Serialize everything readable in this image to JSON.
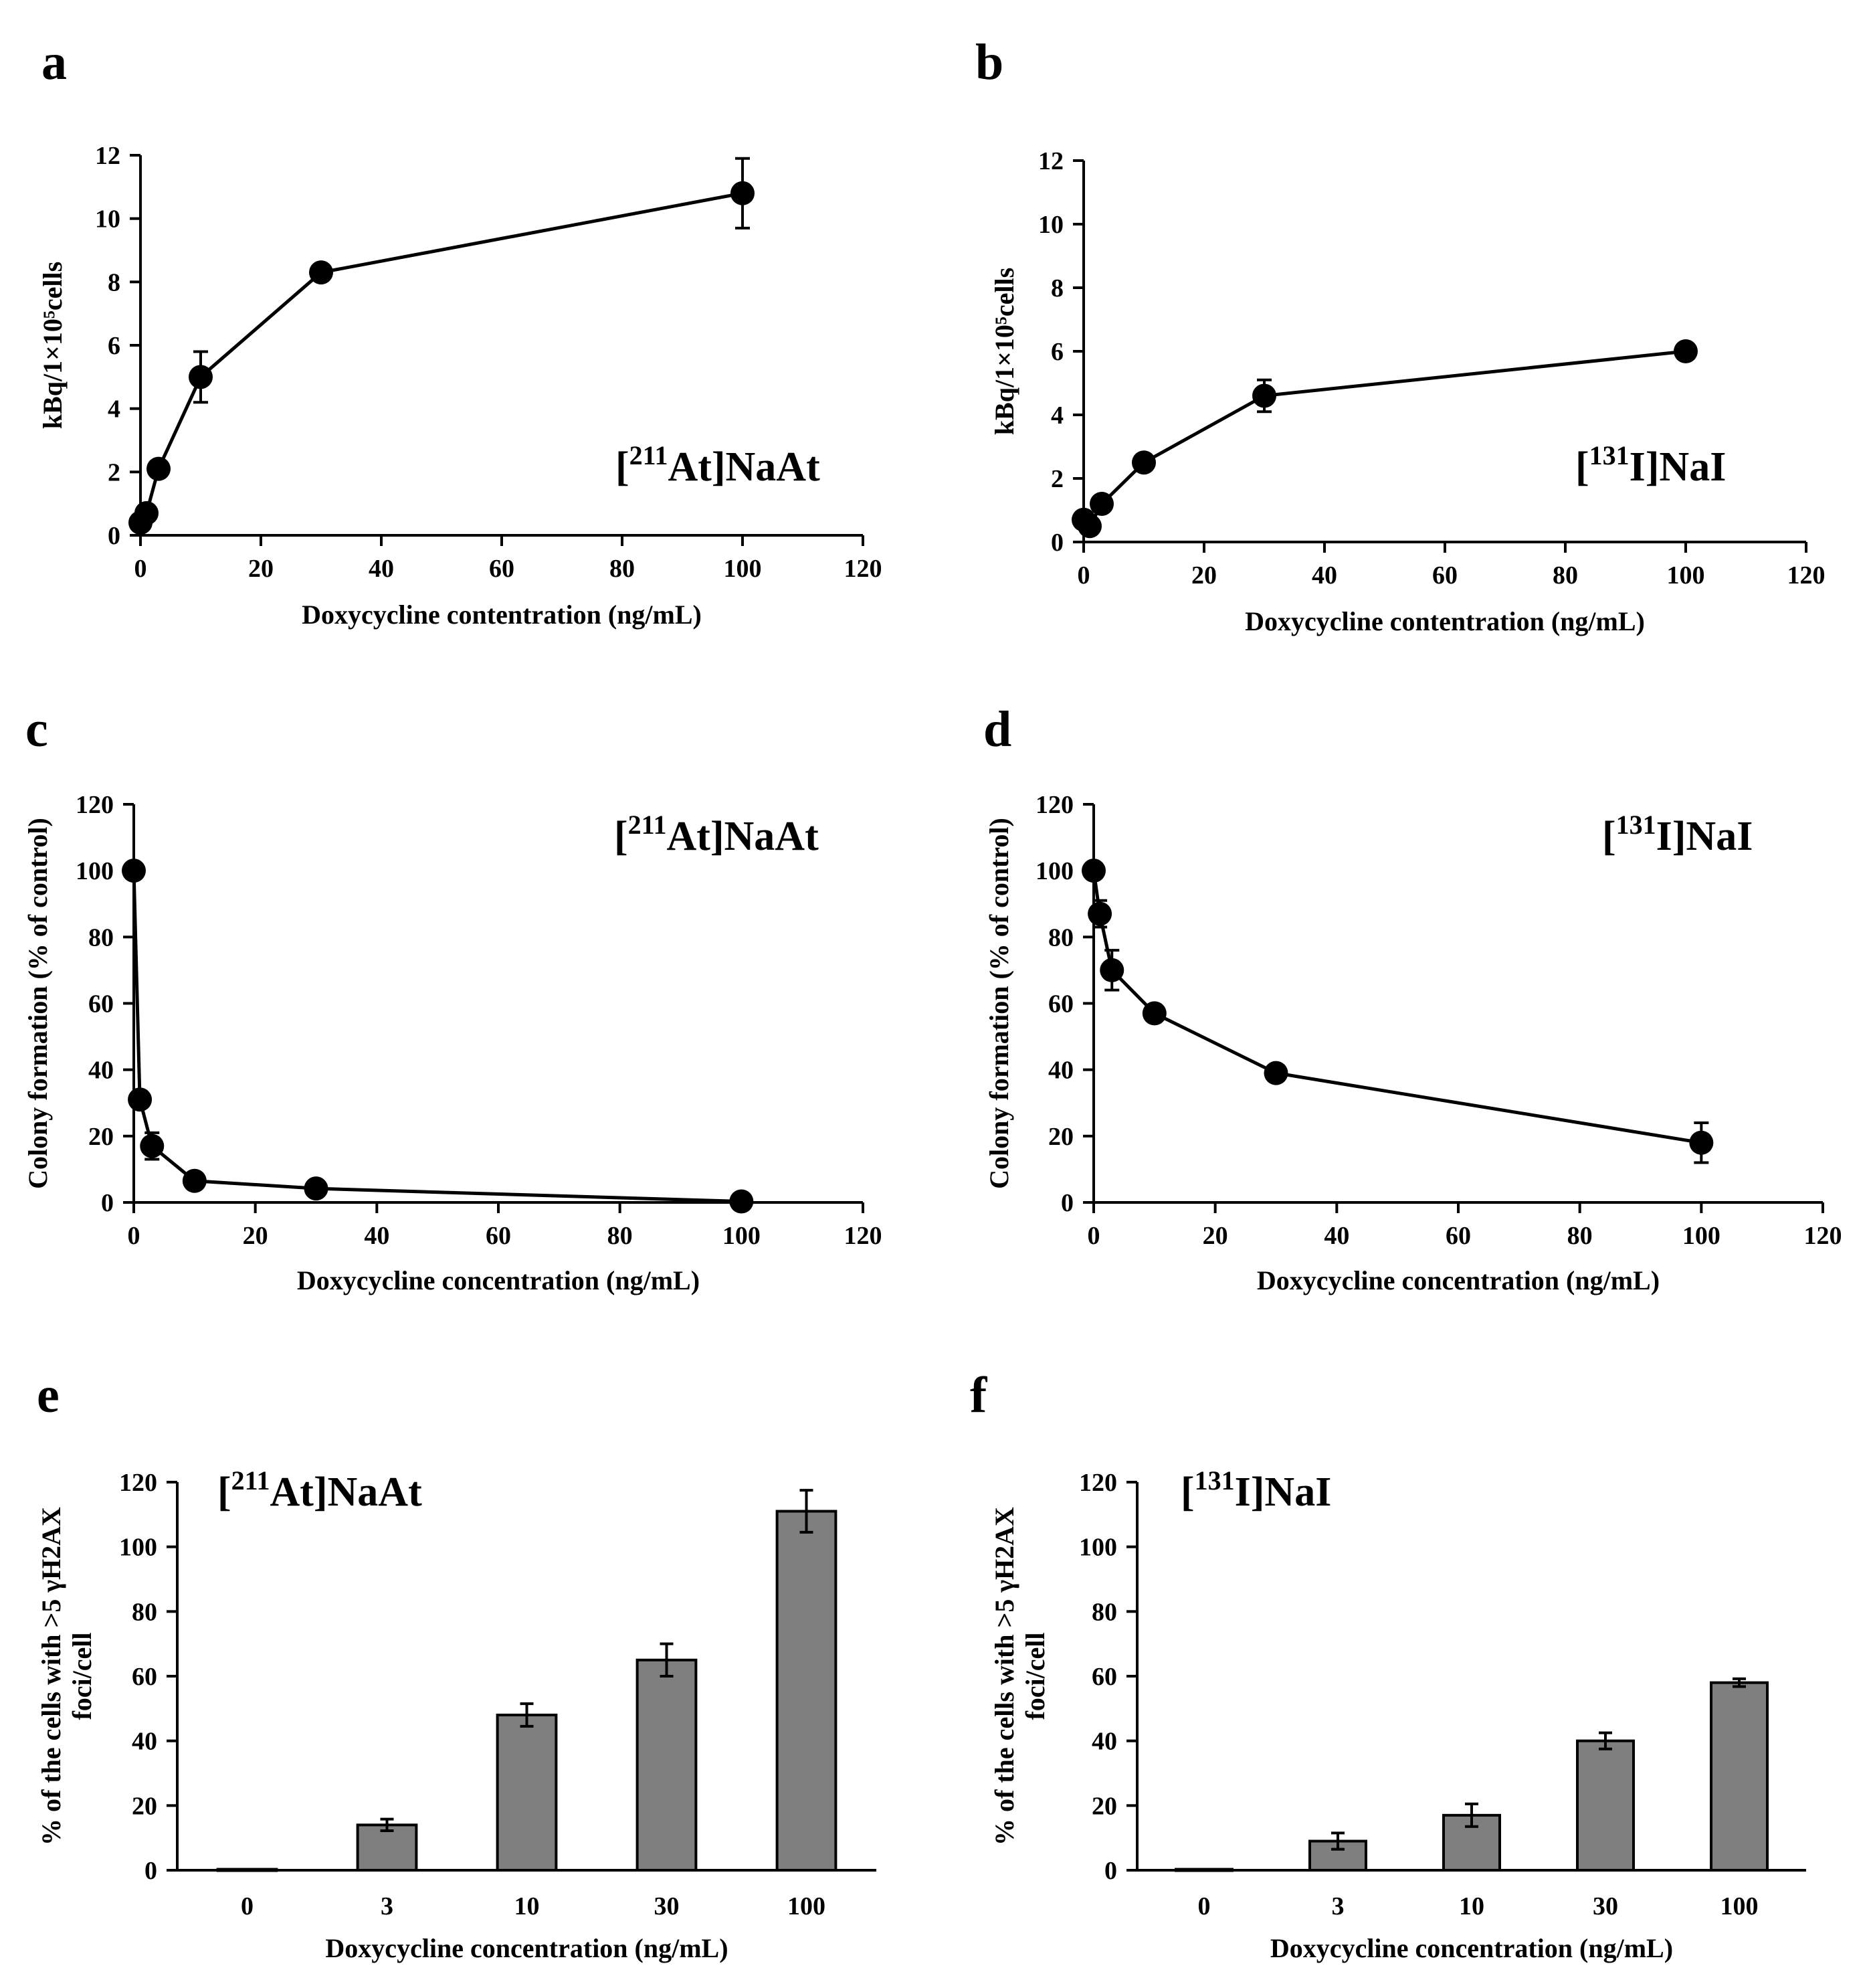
{
  "figure_label": "Doxycycline dose-response panels",
  "chart_data": [
    {
      "id": "a",
      "panel_label": "a",
      "type": "line",
      "inset": {
        "prefix": "[",
        "sup": "211",
        "rest": "At]NaAt"
      },
      "xlabel": "Doxycycline contentration (ng/mL)",
      "ylabel": "kBq/1×10⁵cells",
      "xlim": [
        0,
        120
      ],
      "ylim": [
        0,
        12
      ],
      "xticks": [
        "0",
        "20",
        "40",
        "60",
        "80",
        "100",
        "120"
      ],
      "yticks": [
        "0",
        "2",
        "4",
        "6",
        "8",
        "10",
        "12"
      ],
      "x": [
        0,
        1,
        3,
        10,
        30,
        100
      ],
      "y": [
        0.4,
        0.7,
        2.1,
        5.0,
        8.3,
        10.8
      ],
      "err": [
        0.1,
        0.1,
        0.1,
        0.8,
        0.1,
        1.1
      ]
    },
    {
      "id": "b",
      "panel_label": "b",
      "type": "line",
      "inset": {
        "prefix": "[",
        "sup": "131",
        "rest": "I]NaI"
      },
      "xlabel": "Doxycycline contentration (ng/mL)",
      "ylabel": "kBq/1×10⁵cells",
      "xlim": [
        0,
        120
      ],
      "ylim": [
        0,
        12
      ],
      "xticks": [
        "0",
        "20",
        "40",
        "60",
        "80",
        "100",
        "120"
      ],
      "yticks": [
        "0",
        "2",
        "4",
        "6",
        "8",
        "10",
        "12"
      ],
      "x": [
        0,
        1,
        3,
        10,
        30,
        100
      ],
      "y": [
        0.7,
        0.5,
        1.2,
        2.5,
        4.6,
        6.0
      ],
      "err": [
        0.1,
        0.1,
        0.1,
        0.1,
        0.5,
        0.1
      ]
    },
    {
      "id": "c",
      "panel_label": "c",
      "type": "line",
      "inset": {
        "prefix": "[",
        "sup": "211",
        "rest": "At]NaAt"
      },
      "xlabel": "Doxycycline concentration (ng/mL)",
      "ylabel": "Colony formation (% of control)",
      "xlim": [
        0,
        120
      ],
      "ylim": [
        0,
        120
      ],
      "xticks": [
        "0",
        "20",
        "40",
        "60",
        "80",
        "100",
        "120"
      ],
      "yticks": [
        "0",
        "20",
        "40",
        "60",
        "80",
        "100",
        "120"
      ],
      "x": [
        0,
        1,
        3,
        10,
        30,
        100
      ],
      "y": [
        100,
        31,
        17,
        6.5,
        4.2,
        0.3
      ],
      "err": [
        0.5,
        2,
        4,
        1,
        1,
        0.3
      ]
    },
    {
      "id": "d",
      "panel_label": "d",
      "type": "line",
      "inset": {
        "prefix": "[",
        "sup": "131",
        "rest": "I]NaI"
      },
      "xlabel": "Doxycycline concentration (ng/mL)",
      "ylabel": "Colony formation (% of control)",
      "xlim": [
        0,
        120
      ],
      "ylim": [
        0,
        120
      ],
      "xticks": [
        "0",
        "20",
        "40",
        "60",
        "80",
        "100",
        "120"
      ],
      "yticks": [
        "0",
        "20",
        "40",
        "60",
        "80",
        "100",
        "120"
      ],
      "x": [
        0,
        1,
        3,
        10,
        30,
        100
      ],
      "y": [
        100,
        87,
        70,
        57,
        39,
        18
      ],
      "err": [
        0.5,
        4,
        6,
        1,
        1,
        6
      ]
    },
    {
      "id": "e",
      "panel_label": "e",
      "type": "bar",
      "inset": {
        "prefix": "[",
        "sup": "211",
        "rest": "At]NaAt"
      },
      "xlabel": "Doxycycline concentration (ng/mL)",
      "ylabel": [
        "% of the cells with >5 γH2AX",
        "foci/cell"
      ],
      "ylim": [
        0,
        120
      ],
      "yticks": [
        "0",
        "20",
        "40",
        "60",
        "80",
        "100",
        "120"
      ],
      "categories": [
        "0",
        "3",
        "10",
        "30",
        "100"
      ],
      "values": [
        0.3,
        14,
        48,
        65,
        111
      ],
      "err": [
        0.2,
        1.8,
        3.5,
        5,
        6.5
      ]
    },
    {
      "id": "f",
      "panel_label": "f",
      "type": "bar",
      "inset": {
        "prefix": "[",
        "sup": "131",
        "rest": "I]NaI"
      },
      "xlabel": "Doxycycline concentration (ng/mL)",
      "ylabel": [
        "% of the cells with >5 γH2AX",
        "foci/cell"
      ],
      "ylim": [
        0,
        120
      ],
      "yticks": [
        "0",
        "20",
        "40",
        "60",
        "80",
        "100",
        "120"
      ],
      "categories": [
        "0",
        "3",
        "10",
        "30",
        "100"
      ],
      "values": [
        0.3,
        9,
        17,
        40,
        58
      ],
      "err": [
        0.2,
        2.5,
        3.5,
        2.5,
        1.2
      ]
    }
  ]
}
